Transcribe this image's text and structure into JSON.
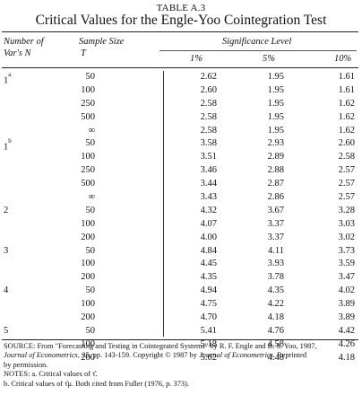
{
  "table_label": "TABLE A.3",
  "title": "Critical Values for the Engle-Yoo Cointegration Test",
  "columns": {
    "n_line1": "Number of",
    "n_line2": "Var's N",
    "t_line1": "Sample Size",
    "t_line2": "T",
    "significance": "Significance Level",
    "p1": "1%",
    "p5": "5%",
    "p10": "10%"
  },
  "rows": [
    {
      "n": "1",
      "sup": "a",
      "t": "50",
      "p1": "2.62",
      "p5": "1.95",
      "p10": "1.61"
    },
    {
      "n": "",
      "sup": "",
      "t": "100",
      "p1": "2.60",
      "p5": "1.95",
      "p10": "1.61"
    },
    {
      "n": "",
      "sup": "",
      "t": "250",
      "p1": "2.58",
      "p5": "1.95",
      "p10": "1.62"
    },
    {
      "n": "",
      "sup": "",
      "t": "500",
      "p1": "2.58",
      "p5": "1.95",
      "p10": "1.62"
    },
    {
      "n": "",
      "sup": "",
      "t": "∞",
      "p1": "2.58",
      "p5": "1.95",
      "p10": "1.62"
    },
    {
      "n": "1",
      "sup": "b",
      "t": "50",
      "p1": "3.58",
      "p5": "2.93",
      "p10": "2.60"
    },
    {
      "n": "",
      "sup": "",
      "t": "100",
      "p1": "3.51",
      "p5": "2.89",
      "p10": "2.58"
    },
    {
      "n": "",
      "sup": "",
      "t": "250",
      "p1": "3.46",
      "p5": "2.88",
      "p10": "2.57"
    },
    {
      "n": "",
      "sup": "",
      "t": "500",
      "p1": "3.44",
      "p5": "2.87",
      "p10": "2.57"
    },
    {
      "n": "",
      "sup": "",
      "t": "∞",
      "p1": "3.43",
      "p5": "2.86",
      "p10": "2.57"
    },
    {
      "n": "2",
      "sup": "",
      "t": "50",
      "p1": "4.32",
      "p5": "3.67",
      "p10": "3.28"
    },
    {
      "n": "",
      "sup": "",
      "t": "100",
      "p1": "4.07",
      "p5": "3.37",
      "p10": "3.03"
    },
    {
      "n": "",
      "sup": "",
      "t": "200",
      "p1": "4.00",
      "p5": "3.37",
      "p10": "3.02"
    },
    {
      "n": "3",
      "sup": "",
      "t": "50",
      "p1": "4.84",
      "p5": "4.11",
      "p10": "3.73"
    },
    {
      "n": "",
      "sup": "",
      "t": "100",
      "p1": "4.45",
      "p5": "3.93",
      "p10": "3.59"
    },
    {
      "n": "",
      "sup": "",
      "t": "200",
      "p1": "4.35",
      "p5": "3.78",
      "p10": "3.47"
    },
    {
      "n": "4",
      "sup": "",
      "t": "50",
      "p1": "4.94",
      "p5": "4.35",
      "p10": "4.02"
    },
    {
      "n": "",
      "sup": "",
      "t": "100",
      "p1": "4.75",
      "p5": "4.22",
      "p10": "3.89"
    },
    {
      "n": "",
      "sup": "",
      "t": "200",
      "p1": "4.70",
      "p5": "4.18",
      "p10": "3.89"
    },
    {
      "n": "5",
      "sup": "",
      "t": "50",
      "p1": "5.41",
      "p5": "4.76",
      "p10": "4.42"
    },
    {
      "n": "",
      "sup": "",
      "t": "100",
      "p1": "5.18",
      "p5": "4.58",
      "p10": "4.26"
    },
    {
      "n": "",
      "sup": "",
      "t": "200",
      "p1": "5.02",
      "p5": "4.48",
      "p10": "4.18"
    }
  ],
  "source": {
    "a": "SOURCE: From \"Forecasting and Testing in Cointegrated Systems\" by R. F. Engle and B. S. Yoo, 1987,",
    "b_italic": "Journal of Econometrics, 35,",
    "b_rest": " pp. 143-159. Copyright © 1987 by ",
    "b_italic2": "Journal of Econometrics.",
    "b_end": " Reprinted",
    "c": "by permission."
  },
  "notes": {
    "line1": "NOTES: a. Critical values of τ̂.",
    "line2": "b. Critical values of τ̂μ. Both cited from Fuller (1976, p. 373)."
  }
}
